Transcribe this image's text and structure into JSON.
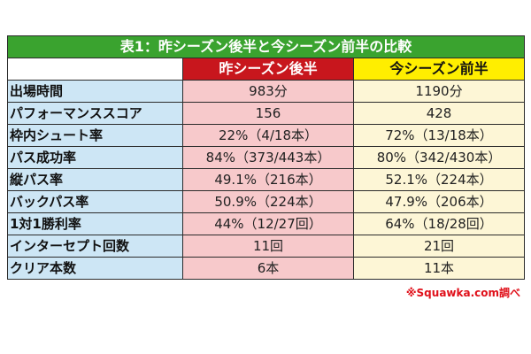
{
  "table": {
    "title": "表1：昨シーズン後半と今シーズン前半の比較",
    "headers": {
      "blank": "",
      "prev": "昨シーズン後半",
      "curr": "今シーズン前半"
    },
    "rows": [
      {
        "label": "出場時間",
        "prev": "983分",
        "curr": "1190分"
      },
      {
        "label": "パフォーマンススコア",
        "prev": "156",
        "curr": "428"
      },
      {
        "label": "枠内シュート率",
        "prev": "22%（4/18本）",
        "curr": "72%（13/18本）"
      },
      {
        "label": "パス成功率",
        "prev": "84%（373/443本）",
        "curr": "80%（342/430本）"
      },
      {
        "label": "縦パス率",
        "prev": "49.1%（216本）",
        "curr": "52.1%（224本）"
      },
      {
        "label": "バックパス率",
        "prev": "50.9%（224本）",
        "curr": "47.9%（206本）"
      },
      {
        "label": "1対1勝利率",
        "prev": "44%（12/27回）",
        "curr": "64%（18/28回）"
      },
      {
        "label": "インターセプト回数",
        "prev": "11回",
        "curr": "21回"
      },
      {
        "label": "クリア本数",
        "prev": "6本",
        "curr": "11本"
      }
    ]
  },
  "source": "※Squawka.com調べ",
  "colors": {
    "title_bg": "#3aa32f",
    "prev_head_bg": "#c8161d",
    "curr_head_bg": "#ffee00",
    "label_bg": "#cde6f5",
    "prev_val_bg": "#f7c9cb",
    "curr_val_bg": "#fdf6d6",
    "source_text": "#e0101a"
  }
}
